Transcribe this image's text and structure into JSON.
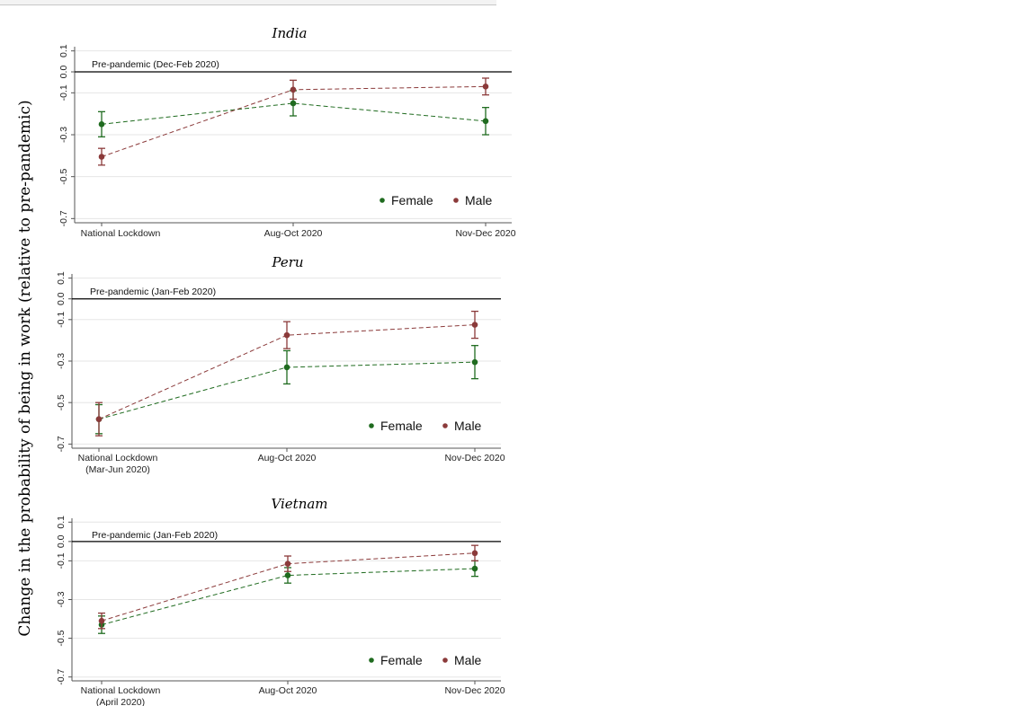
{
  "y_axis_label": "Change in the probability of being in work (relative to pre-pandemic)",
  "legend": [
    "Female",
    "Male"
  ],
  "colors": {
    "female": "#1f6b1f",
    "male": "#8b3a3a",
    "grid": "#e6e6e6",
    "axis": "#555555",
    "reference": "#000000"
  },
  "chart_data": [
    {
      "type": "line",
      "title": "India",
      "reference_label": "Pre-pandemic (Dec-Feb 2020)",
      "categories": [
        [
          "National Lockdown"
        ],
        [
          "Aug-Oct 2020"
        ],
        [
          "Nov-Dec 2020"
        ]
      ],
      "yticks": [
        0.1,
        0.0,
        -0.1,
        -0.3,
        -0.5,
        -0.7
      ],
      "ytick_labels": [
        "0.1",
        "0.0",
        "-0.1",
        "-0.3",
        "-0.5",
        "-0.7"
      ],
      "ylim": [
        -0.72,
        0.12
      ],
      "grid": true,
      "legend_position": "bottom-right",
      "series": [
        {
          "name": "Female",
          "values": [
            -0.25,
            -0.15,
            -0.235
          ],
          "ci_low": [
            -0.31,
            -0.21,
            -0.3
          ],
          "ci_high": [
            -0.19,
            -0.09,
            -0.17
          ]
        },
        {
          "name": "Male",
          "values": [
            -0.405,
            -0.085,
            -0.07
          ],
          "ci_low": [
            -0.445,
            -0.13,
            -0.11
          ],
          "ci_high": [
            -0.365,
            -0.04,
            -0.03
          ]
        }
      ]
    },
    {
      "type": "line",
      "title": "Peru",
      "reference_label": "Pre-pandemic (Jan-Feb 2020)",
      "categories": [
        [
          "National Lockdown",
          "(Mar-Jun 2020)"
        ],
        [
          "Aug-Oct 2020"
        ],
        [
          "Nov-Dec 2020"
        ]
      ],
      "yticks": [
        0.1,
        0.0,
        -0.1,
        -0.3,
        -0.5,
        -0.7
      ],
      "ytick_labels": [
        "0.1",
        "0.0",
        "-0.1",
        "-0.3",
        "-0.5",
        "-0.7"
      ],
      "ylim": [
        -0.72,
        0.12
      ],
      "grid": true,
      "legend_position": "bottom-right",
      "series": [
        {
          "name": "Female",
          "values": [
            -0.58,
            -0.33,
            -0.305
          ],
          "ci_low": [
            -0.65,
            -0.41,
            -0.385
          ],
          "ci_high": [
            -0.51,
            -0.25,
            -0.225
          ]
        },
        {
          "name": "Male",
          "values": [
            -0.58,
            -0.175,
            -0.125
          ],
          "ci_low": [
            -0.66,
            -0.24,
            -0.19
          ],
          "ci_high": [
            -0.5,
            -0.11,
            -0.06
          ]
        }
      ]
    },
    {
      "type": "line",
      "title": "Vietnam",
      "reference_label": "Pre-pandemic (Jan-Feb 2020)",
      "categories": [
        [
          "National Lockdown",
          "(April 2020)"
        ],
        [
          "Aug-Oct 2020"
        ],
        [
          "Nov-Dec 2020"
        ]
      ],
      "yticks": [
        0.1,
        0.0,
        -0.1,
        -0.3,
        -0.5,
        -0.7
      ],
      "ytick_labels": [
        "0.1",
        "0.0",
        "-0.1",
        "-0.3",
        "-0.5",
        "-0.7"
      ],
      "ylim": [
        -0.72,
        0.12
      ],
      "grid": true,
      "legend_position": "bottom-right",
      "series": [
        {
          "name": "Female",
          "values": [
            -0.43,
            -0.175,
            -0.14
          ],
          "ci_low": [
            -0.475,
            -0.215,
            -0.18
          ],
          "ci_high": [
            -0.385,
            -0.135,
            -0.1
          ]
        },
        {
          "name": "Male",
          "values": [
            -0.41,
            -0.115,
            -0.06
          ],
          "ci_low": [
            -0.45,
            -0.155,
            -0.1
          ],
          "ci_high": [
            -0.37,
            -0.075,
            -0.02
          ]
        }
      ]
    }
  ]
}
